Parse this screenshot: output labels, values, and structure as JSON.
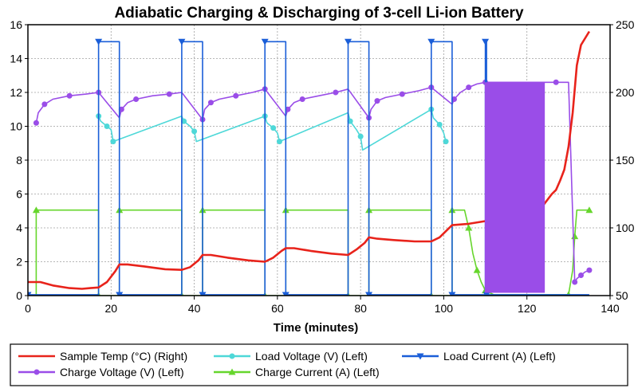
{
  "chart_data": {
    "type": "line",
    "title": "Adiabatic Charging & Discharging of 3-cell Li-ion Battery",
    "xlabel": "Time (minutes)",
    "ylabel_left": "",
    "ylabel_right": "",
    "xlim": [
      0,
      140
    ],
    "ylim_left": [
      0,
      16
    ],
    "ylim_right": [
      50,
      250
    ],
    "xticks": [
      0,
      20,
      40,
      60,
      80,
      100,
      120,
      140
    ],
    "yticks_left": [
      0,
      2,
      4,
      6,
      8,
      10,
      12,
      14,
      16
    ],
    "yticks_right": [
      50,
      100,
      150,
      200,
      250
    ],
    "grid": true,
    "legend_position": "bottom",
    "series": [
      {
        "name": "Sample Temp (°C) (Right)",
        "axis": "right",
        "color": "#e8231b",
        "marker": "none",
        "x": [
          0,
          3,
          6,
          10,
          13,
          15,
          17,
          19,
          21,
          22,
          24,
          28,
          33,
          37,
          39,
          41,
          42,
          44,
          48,
          53,
          57,
          59,
          61,
          62,
          64,
          68,
          73,
          77,
          79,
          81,
          82,
          84,
          88,
          93,
          97,
          99,
          101,
          102,
          106,
          110,
          115,
          120,
          124,
          126,
          127,
          128,
          129,
          130,
          131,
          132,
          133,
          134,
          135
        ],
        "y": [
          60,
          60,
          57.5,
          55.5,
          55,
          55.5,
          56,
          60,
          68,
          73,
          73,
          71.5,
          69.5,
          69,
          71,
          76,
          80,
          80,
          78,
          76,
          75,
          78,
          83,
          85,
          85,
          83,
          81,
          80,
          84,
          89,
          93,
          92,
          91,
          90,
          90,
          93,
          99,
          102,
          103,
          105,
          110,
          113,
          117,
          125,
          128,
          135,
          143,
          160,
          185,
          220,
          235,
          240,
          245
        ]
      },
      {
        "name": "Load Voltage (V) (Left)",
        "axis": "left",
        "color": "#4ed8d8",
        "marker": "circle",
        "x": [
          17,
          17.5,
          19,
          20,
          20.5,
          37,
          37.5,
          39,
          40,
          40.5,
          57,
          57.5,
          59,
          60,
          60.5,
          77,
          77.5,
          79,
          80,
          80.5,
          97,
          97.5,
          99,
          100,
          100.5
        ],
        "y": [
          10.6,
          10.3,
          10.0,
          9.8,
          9.1,
          10.6,
          10.3,
          10.0,
          9.7,
          9.1,
          10.6,
          10.2,
          9.9,
          9.6,
          9.1,
          10.8,
          10.3,
          9.8,
          9.4,
          8.6,
          11.0,
          10.5,
          10.1,
          9.6,
          9.1
        ]
      },
      {
        "name": "Load Current (A) (Left)",
        "axis": "left",
        "color": "#1a5ed8",
        "marker": "triangle-down",
        "x": [
          0,
          17,
          17,
          22,
          22,
          37,
          37,
          42,
          42,
          57,
          57,
          62,
          62,
          77,
          77,
          82,
          82,
          97,
          97,
          102,
          102,
          110,
          110,
          110.3,
          110.3,
          135
        ],
        "y": [
          0.05,
          0.05,
          15,
          15,
          0.05,
          0.05,
          15,
          15,
          0.05,
          0.05,
          15,
          15,
          0.05,
          0.05,
          15,
          15,
          0.05,
          0.05,
          15,
          15,
          0.05,
          0.05,
          15,
          15,
          0.05,
          0.05
        ]
      },
      {
        "name": "Charge Voltage (V) (Left)",
        "axis": "left",
        "color": "#9a4de8",
        "marker": "circle",
        "x": [
          2,
          2.5,
          4,
          6,
          10,
          14,
          17,
          22,
          22.5,
          24,
          26,
          30,
          34,
          37,
          42,
          42.5,
          44,
          46,
          50,
          54,
          57,
          62,
          62.5,
          64,
          66,
          70,
          74,
          77,
          82,
          82.5,
          84,
          86,
          90,
          94,
          97,
          102,
          102.5,
          104,
          106,
          108,
          110,
          124,
          127,
          130,
          131.5,
          132,
          133,
          134,
          135
        ],
        "y": [
          10.2,
          10.8,
          11.3,
          11.6,
          11.8,
          11.9,
          12.0,
          10.5,
          11.0,
          11.4,
          11.6,
          11.8,
          11.9,
          12.0,
          10.4,
          11.0,
          11.4,
          11.6,
          11.8,
          12.0,
          12.2,
          10.6,
          11.0,
          11.4,
          11.6,
          11.8,
          12.0,
          12.2,
          10.5,
          11.0,
          11.5,
          11.7,
          11.9,
          12.1,
          12.3,
          11.3,
          11.6,
          12.0,
          12.3,
          12.5,
          12.6,
          12.6,
          12.6,
          12.6,
          0.8,
          1.0,
          1.2,
          1.4,
          1.5
        ]
      },
      {
        "name": "Charge Current (A) (Left)",
        "axis": "left",
        "color": "#66d62c",
        "marker": "triangle-up",
        "x": [
          0,
          2,
          2,
          17,
          17,
          22,
          22,
          37,
          37,
          42,
          42,
          57,
          57,
          62,
          62,
          77,
          77,
          82,
          82,
          97,
          97,
          102,
          102,
          105,
          106,
          107,
          108,
          109,
          110,
          112,
          130,
          131,
          131.5,
          132,
          135
        ],
        "y": [
          0,
          0,
          5.05,
          5.05,
          0,
          0,
          5.05,
          5.05,
          0,
          0,
          5.05,
          5.05,
          0,
          0,
          5.05,
          5.05,
          0,
          0,
          5.05,
          5.05,
          0,
          0,
          5.05,
          5.05,
          4.0,
          2.5,
          1.5,
          0.8,
          0.3,
          0.05,
          0.05,
          1.5,
          3.5,
          5.05,
          5.05
        ]
      }
    ]
  }
}
